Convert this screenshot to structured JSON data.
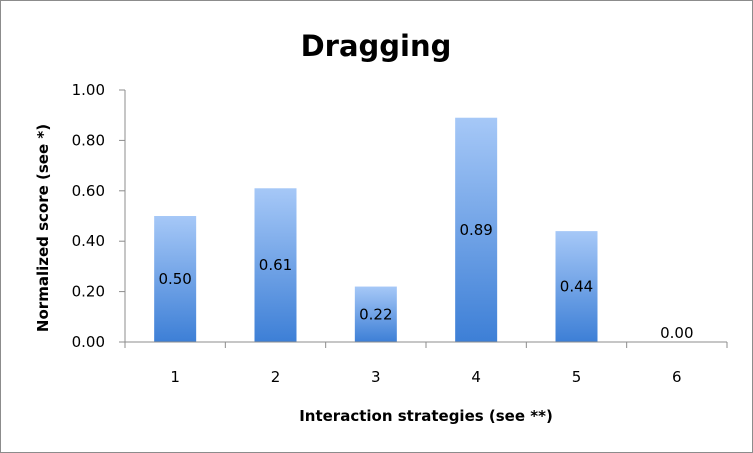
{
  "chart_data": {
    "type": "bar",
    "title": "Dragging",
    "xlabel": "Interaction strategies (see **)",
    "ylabel": "Normalized score (see *)",
    "categories": [
      "1",
      "2",
      "3",
      "4",
      "5",
      "6"
    ],
    "values": [
      0.5,
      0.61,
      0.22,
      0.89,
      0.44,
      0.0
    ],
    "data_labels": [
      "0.50",
      "0.61",
      "0.22",
      "0.89",
      "0.44",
      "0.00"
    ],
    "yticks": [
      "0.00",
      "0.20",
      "0.40",
      "0.60",
      "0.80",
      "1.00"
    ],
    "ylim": [
      0,
      1
    ],
    "grid": false,
    "legend": "none",
    "colors": {
      "bar_top": "#a6c8f7",
      "bar_bottom": "#3d7fd6",
      "axis": "#8c8c8c"
    }
  }
}
